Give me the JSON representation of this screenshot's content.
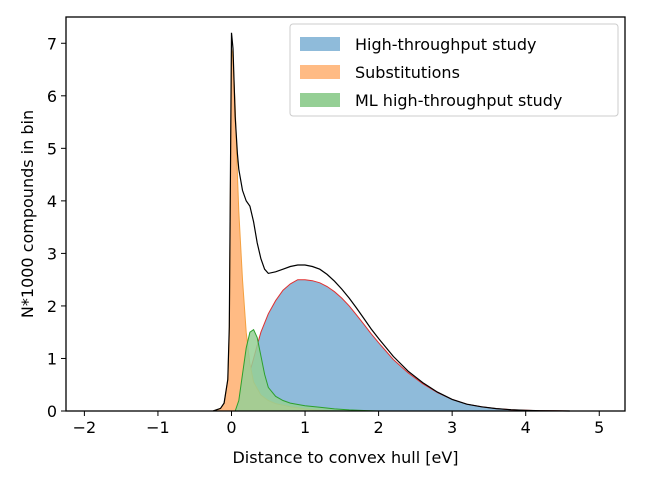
{
  "chart_data": {
    "type": "area",
    "xlabel": "Distance to convex hull [eV]",
    "ylabel": "N*1000 compounds in bin",
    "xlim": [
      -2.25,
      5.35
    ],
    "ylim": [
      0,
      7.5
    ],
    "xticks": [
      -2,
      -1,
      0,
      1,
      2,
      3,
      4,
      5
    ],
    "yticks": [
      0,
      1,
      2,
      3,
      4,
      5,
      6,
      7
    ],
    "xtick_labels": [
      "−2",
      "−1",
      "0",
      "1",
      "2",
      "3",
      "4",
      "5"
    ],
    "ytick_labels": [
      "0",
      "1",
      "2",
      "3",
      "4",
      "5",
      "6",
      "7"
    ],
    "legend_position": "top-right",
    "series": [
      {
        "name": "High-throughput study",
        "fill": "#8fbbda",
        "edge": "#e03030",
        "x": [
          0.0,
          0.05,
          0.1,
          0.15,
          0.2,
          0.25,
          0.3,
          0.35,
          0.4,
          0.5,
          0.6,
          0.7,
          0.8,
          0.9,
          1.0,
          1.1,
          1.2,
          1.3,
          1.4,
          1.5,
          1.6,
          1.7,
          1.8,
          1.9,
          2.0,
          2.2,
          2.4,
          2.6,
          2.8,
          3.0,
          3.2,
          3.4,
          3.6,
          3.8,
          4.0,
          4.2,
          4.4,
          4.6
        ],
        "y": [
          0.0,
          0.06,
          0.16,
          0.3,
          0.5,
          0.75,
          1.0,
          1.25,
          1.5,
          1.85,
          2.1,
          2.3,
          2.42,
          2.5,
          2.5,
          2.48,
          2.44,
          2.37,
          2.27,
          2.15,
          2.0,
          1.83,
          1.65,
          1.47,
          1.3,
          0.98,
          0.73,
          0.52,
          0.35,
          0.22,
          0.13,
          0.08,
          0.045,
          0.025,
          0.013,
          0.006,
          0.003,
          0.0
        ]
      },
      {
        "name": "Substitutions",
        "fill": "#ffbb84",
        "edge": "#f4a040",
        "x": [
          -0.25,
          -0.15,
          -0.1,
          -0.05,
          -0.03,
          0.0,
          0.02,
          0.05,
          0.08,
          0.1,
          0.15,
          0.2,
          0.25,
          0.3,
          0.4,
          0.5,
          0.6,
          0.8,
          1.0,
          1.2,
          1.4
        ],
        "y": [
          0.0,
          0.05,
          0.15,
          0.6,
          1.5,
          6.9,
          6.7,
          5.8,
          4.5,
          3.8,
          2.5,
          1.5,
          0.9,
          0.55,
          0.3,
          0.2,
          0.14,
          0.08,
          0.04,
          0.015,
          0.0
        ]
      },
      {
        "name": "ML high-throughput study",
        "fill": "#95cf95",
        "edge": "#2ca02c",
        "x": [
          0.05,
          0.1,
          0.15,
          0.2,
          0.25,
          0.3,
          0.35,
          0.4,
          0.45,
          0.5,
          0.6,
          0.7,
          0.8,
          1.0,
          1.2,
          1.4,
          1.6,
          1.8,
          2.0
        ],
        "y": [
          0.0,
          0.2,
          0.7,
          1.2,
          1.5,
          1.55,
          1.4,
          1.05,
          0.7,
          0.45,
          0.28,
          0.2,
          0.15,
          0.1,
          0.07,
          0.04,
          0.02,
          0.01,
          0.0
        ]
      },
      {
        "name": "",
        "line_only": true,
        "color": "#000000",
        "x": [
          -0.25,
          -0.15,
          -0.1,
          -0.05,
          -0.03,
          0.0,
          0.02,
          0.05,
          0.08,
          0.1,
          0.15,
          0.2,
          0.25,
          0.3,
          0.35,
          0.4,
          0.45,
          0.5,
          0.6,
          0.7,
          0.8,
          0.9,
          1.0,
          1.1,
          1.2,
          1.3,
          1.4,
          1.5,
          1.6,
          1.7,
          1.8,
          1.9,
          2.0,
          2.2,
          2.4,
          2.6,
          2.8,
          3.0,
          3.2,
          3.4,
          3.6,
          3.8,
          4.0,
          4.2,
          4.4,
          4.6
        ],
        "y": [
          0.0,
          0.05,
          0.15,
          0.6,
          1.6,
          7.2,
          6.9,
          5.6,
          4.9,
          4.6,
          4.2,
          4.0,
          3.9,
          3.6,
          3.2,
          2.9,
          2.7,
          2.62,
          2.65,
          2.7,
          2.75,
          2.78,
          2.78,
          2.75,
          2.7,
          2.6,
          2.47,
          2.32,
          2.15,
          1.96,
          1.76,
          1.56,
          1.38,
          1.04,
          0.76,
          0.54,
          0.36,
          0.22,
          0.13,
          0.08,
          0.045,
          0.025,
          0.013,
          0.006,
          0.003,
          0.0
        ]
      }
    ]
  }
}
